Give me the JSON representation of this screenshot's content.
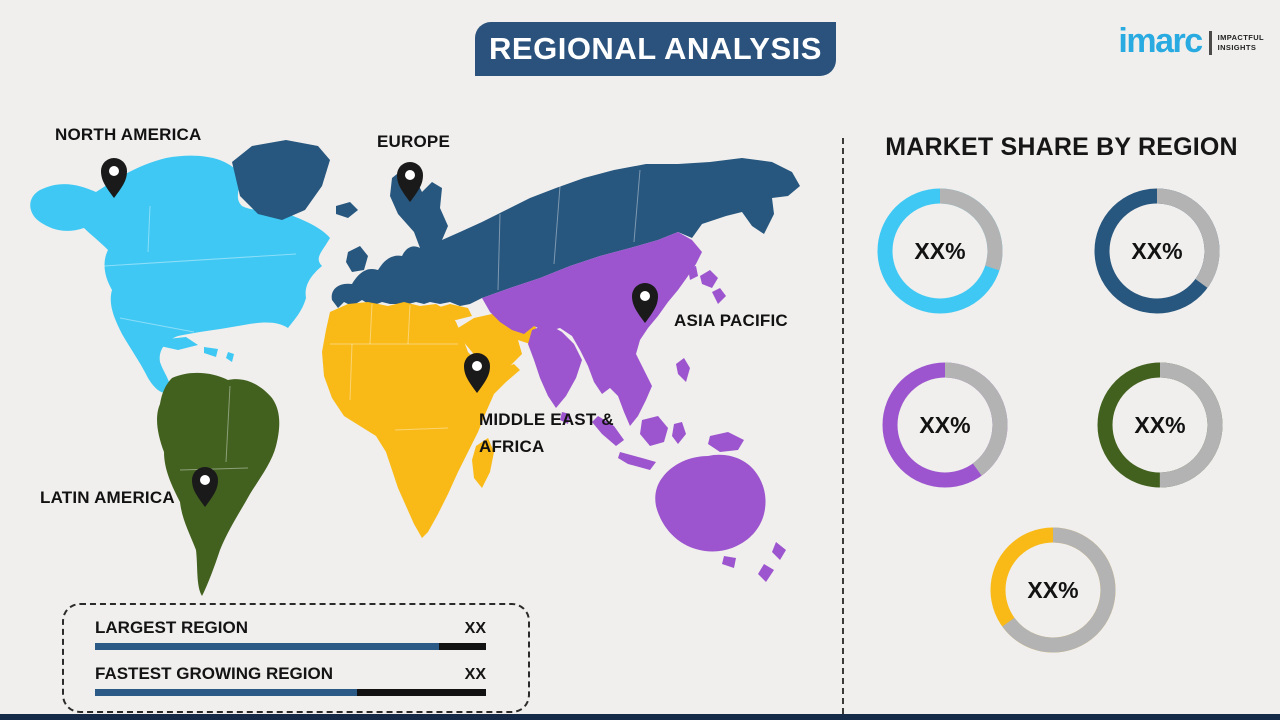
{
  "page": {
    "background": "#F0EFED",
    "footer_bar_color": "#152A47"
  },
  "header": {
    "banner": {
      "label": "REGIONAL ANALYSIS",
      "bg_color": "#2A527C",
      "text_color": "#FFFFFF"
    },
    "logo": {
      "wordmark": "imarc",
      "tagline_line1": "IMPACTFUL",
      "tagline_line2": "INSIGHTS",
      "brand_color": "#29ABE2"
    }
  },
  "map": {
    "pin_color": "#1A1A1A",
    "region_colors": {
      "north_america": "#3FC8F4",
      "europe": "#27567E",
      "asia_pacific": "#9C55CE",
      "middle_east_africa": "#F9B917",
      "latin_america": "#42611F"
    },
    "labels": {
      "north_america": "NORTH AMERICA",
      "europe": "EUROPE",
      "asia_pacific": "ASIA PACIFIC",
      "middle_east_africa_line1": "MIDDLE EAST &",
      "middle_east_africa_line2": "AFRICA",
      "latin_america": "LATIN AMERICA"
    }
  },
  "legend": {
    "bar_fill_color": "#2B5A87",
    "bar_rest_color": "#121212",
    "rows": [
      {
        "label": "LARGEST REGION",
        "value": "XX",
        "bar_fill_pct": 88
      },
      {
        "label": "FASTEST GROWING REGION",
        "value": "XX",
        "bar_fill_pct": 67
      }
    ]
  },
  "market_share": {
    "heading": "MARKET SHARE BY REGION",
    "track_color": "#B3B3B3",
    "donuts": [
      {
        "region": "North America",
        "value_label": "XX%",
        "color": "#3FC8F4",
        "fill_pct": 70
      },
      {
        "region": "Europe",
        "value_label": "XX%",
        "color": "#27567E",
        "fill_pct": 65
      },
      {
        "region": "Asia Pacific",
        "value_label": "XX%",
        "color": "#9C55CE",
        "fill_pct": 60
      },
      {
        "region": "Latin America",
        "value_label": "XX%",
        "color": "#42611F",
        "fill_pct": 50
      },
      {
        "region": "Middle East & Africa",
        "value_label": "XX%",
        "color": "#F9B917",
        "fill_pct": 35
      }
    ]
  },
  "chart_data": [
    {
      "type": "pie",
      "title": "Market share donut 1 (North America color)",
      "categories": [
        "share",
        "rest"
      ],
      "values": [
        70,
        30
      ],
      "label": "XX%"
    },
    {
      "type": "pie",
      "title": "Market share donut 2 (Europe color)",
      "categories": [
        "share",
        "rest"
      ],
      "values": [
        65,
        35
      ],
      "label": "XX%"
    },
    {
      "type": "pie",
      "title": "Market share donut 3 (Asia Pacific color)",
      "categories": [
        "share",
        "rest"
      ],
      "values": [
        60,
        40
      ],
      "label": "XX%"
    },
    {
      "type": "pie",
      "title": "Market share donut 4 (Latin America color)",
      "categories": [
        "share",
        "rest"
      ],
      "values": [
        50,
        50
      ],
      "label": "XX%"
    },
    {
      "type": "pie",
      "title": "Market share donut 5 (Middle East & Africa color)",
      "categories": [
        "share",
        "rest"
      ],
      "values": [
        35,
        65
      ],
      "label": "XX%"
    }
  ]
}
